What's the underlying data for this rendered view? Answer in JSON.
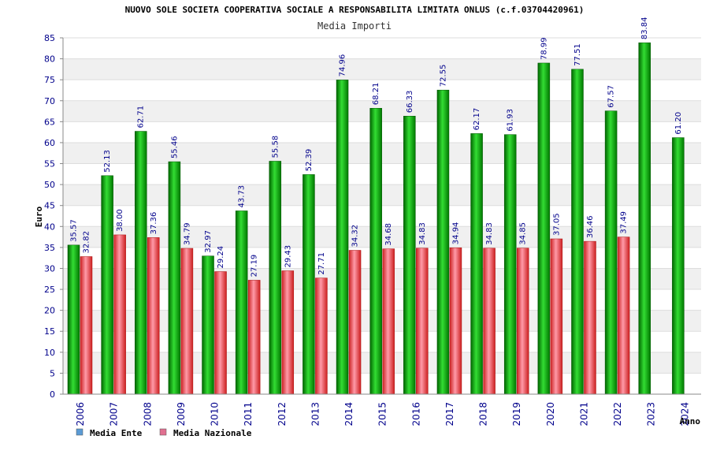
{
  "chart_data": {
    "type": "bar",
    "title": "NUOVO SOLE SOCIETA COOPERATIVA SOCIALE A RESPONSABILITA LIMITATA ONLUS (c.f.03704420961)",
    "subtitle": "Media Importi",
    "ylabel": "Euro",
    "xlabel": "Anno",
    "ylim": [
      0,
      85
    ],
    "yticks": [
      0,
      5,
      10,
      15,
      20,
      25,
      30,
      35,
      40,
      45,
      50,
      55,
      60,
      65,
      70,
      75,
      80,
      85
    ],
    "grid": "horizontal-bands",
    "legend_position": "bottom-left",
    "categories": [
      "2006",
      "2007",
      "2008",
      "2009",
      "2010",
      "2011",
      "2012",
      "2013",
      "2014",
      "2015",
      "2016",
      "2017",
      "2018",
      "2019",
      "2020",
      "2021",
      "2022",
      "2023",
      "2024"
    ],
    "series": [
      {
        "name": "Media Ente",
        "legend_color": "#5b9bd5",
        "bar_color": "#22aa22",
        "values": [
          35.57,
          52.13,
          62.71,
          55.46,
          32.97,
          43.73,
          55.58,
          52.39,
          74.96,
          68.21,
          66.33,
          72.55,
          62.17,
          61.93,
          78.99,
          77.51,
          67.57,
          83.84,
          61.2
        ],
        "labels": [
          "35.57",
          "52.13",
          "62.71",
          "55.46",
          "32.97",
          "43.73",
          "55.58",
          "52.39",
          "74.96",
          "68.21",
          "66.33",
          "72.55",
          "62.17",
          "61.93",
          "78.99",
          "77.51",
          "67.57",
          "83.84",
          "61.20"
        ]
      },
      {
        "name": "Media Nazionale",
        "legend_color": "#e07090",
        "bar_color": "#e03030",
        "values": [
          32.82,
          38.0,
          37.36,
          34.79,
          29.24,
          27.19,
          29.43,
          27.71,
          34.32,
          34.68,
          34.83,
          34.94,
          34.83,
          34.85,
          37.05,
          36.46,
          37.49,
          null,
          null
        ],
        "labels": [
          "32.82",
          "38.00",
          "37.36",
          "34.79",
          "29.24",
          "27.19",
          "29.43",
          "27.71",
          "34.32",
          "34.68",
          "34.83",
          "34.94",
          "34.83",
          "34.85",
          "37.05",
          "36.46",
          "37.49",
          null,
          null
        ]
      }
    ]
  }
}
